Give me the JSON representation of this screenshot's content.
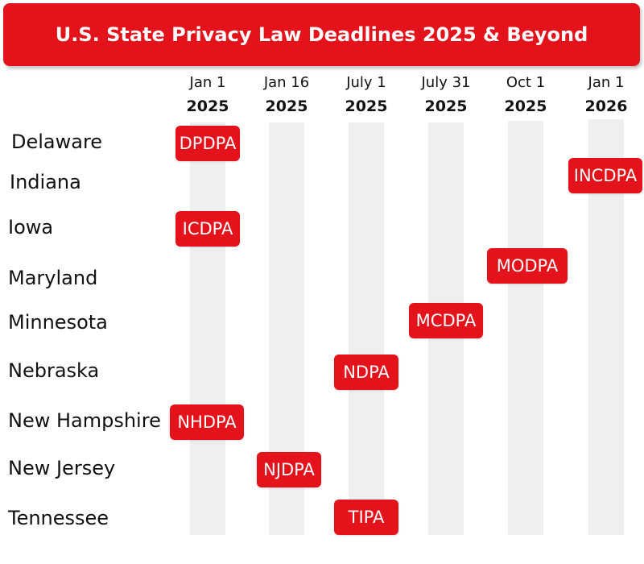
{
  "title": "U.S. State Privacy Law Deadlines 2025 & Beyond",
  "columns": [
    {
      "date": "Jan 1",
      "year": "2025"
    },
    {
      "date": "Jan 16",
      "year": "2025"
    },
    {
      "date": "July 1",
      "year": "2025"
    },
    {
      "date": "July 31",
      "year": "2025"
    },
    {
      "date": "Oct 1",
      "year": "2025"
    },
    {
      "date": "Jan 1",
      "year": "2026"
    }
  ],
  "rows": [
    {
      "state": "Delaware",
      "law": "DPDPA",
      "column": 0
    },
    {
      "state": "Indiana",
      "law": "INCDPA",
      "column": 5
    },
    {
      "state": "Iowa",
      "law": "ICDPA",
      "column": 0
    },
    {
      "state": "Maryland",
      "law": "MODPA",
      "column": 4
    },
    {
      "state": "Minnesota",
      "law": "MCDPA",
      "column": 3
    },
    {
      "state": "Nebraska",
      "law": "NDPA",
      "column": 2
    },
    {
      "state": "New Hampshire",
      "law": "NHDPA",
      "column": 0
    },
    {
      "state": "New Jersey",
      "law": "NJDPA",
      "column": 1
    },
    {
      "state": "Tennessee",
      "law": "TIPA",
      "column": 2
    }
  ],
  "colors": {
    "accent": "#e3121b",
    "stripe": "#efefef"
  }
}
